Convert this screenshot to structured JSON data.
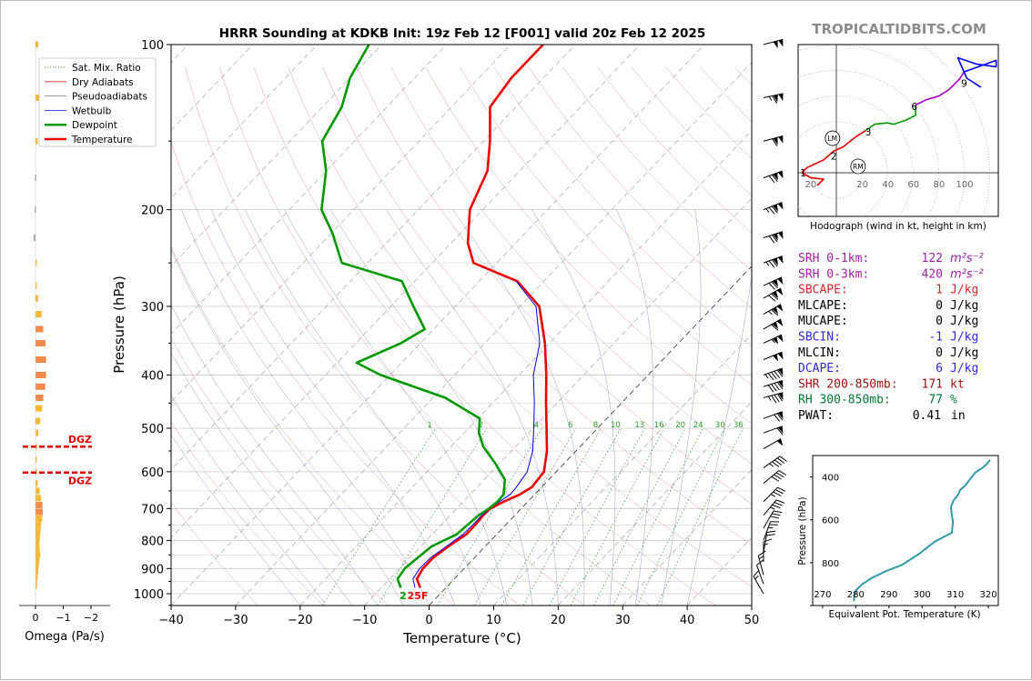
{
  "header": {
    "title": "HRRR Sounding at KDKB Init: 19z Feb 12 [F001] valid 20z Feb 12 2025",
    "brand": "TROPICALTIDBITS.COM"
  },
  "legend": {
    "items": [
      {
        "label": "Sat. Mix. Ratio",
        "color": "#2ca02c",
        "style": "dotted"
      },
      {
        "label": "Dry Adiabats",
        "color": "#d62728",
        "style": "solid-thin"
      },
      {
        "label": "Pseudoadiabats",
        "color": "#7f7f7f",
        "style": "solid-thin"
      },
      {
        "label": "Wetbulb",
        "color": "#0000ee",
        "style": "solid-thin"
      },
      {
        "label": "Dewpoint",
        "color": "#009900",
        "style": "solid-thick"
      },
      {
        "label": "Temperature",
        "color": "#ee0000",
        "style": "solid-thick"
      }
    ]
  },
  "skewt": {
    "xlabel": "Temperature (°C)",
    "ylabel": "Pressure (hPa)",
    "surface_temp_label": "25F",
    "surface_dew_label": "2",
    "chart_data": {
      "type": "line",
      "title": "HRRR Sounding at KDKB Init: 19z Feb 12 [F001] valid 20z Feb 12 2025",
      "xlabel": "Temperature (°C)",
      "ylabel": "Pressure (hPa)",
      "xlim": [
        -40,
        50
      ],
      "ylim": [
        1050,
        100
      ],
      "yscale": "log",
      "x_ticks": [
        -40,
        -30,
        -20,
        -10,
        0,
        10,
        20,
        30,
        40,
        50
      ],
      "y_ticks": [
        100,
        200,
        300,
        400,
        500,
        600,
        700,
        800,
        900,
        1000
      ],
      "series": [
        {
          "name": "Temperature",
          "color": "#ee0000",
          "points": [
            [
              -4.0,
              975
            ],
            [
              -5.8,
              940
            ],
            [
              -6.4,
              900
            ],
            [
              -6.4,
              860
            ],
            [
              -5.7,
              820
            ],
            [
              -4.7,
              780
            ],
            [
              -4.7,
              750
            ],
            [
              -4.9,
              720
            ],
            [
              -4.8,
              700
            ],
            [
              -3.7,
              680
            ],
            [
              -2.3,
              660
            ],
            [
              -1.5,
              640
            ],
            [
              -1.9,
              600
            ],
            [
              -4.5,
              550
            ],
            [
              -7.9,
              500
            ],
            [
              -11.7,
              450
            ],
            [
              -15.8,
              400
            ],
            [
              -20.7,
              350
            ],
            [
              -27.0,
              300
            ],
            [
              -34.1,
              270
            ],
            [
              -43.6,
              250
            ],
            [
              -47.4,
              230
            ],
            [
              -52.0,
              200
            ],
            [
              -55.0,
              170
            ],
            [
              -59.0,
              150
            ],
            [
              -64.0,
              130
            ],
            [
              -65.0,
              115
            ],
            [
              -65.0,
              100
            ]
          ]
        },
        {
          "name": "Wetbulb",
          "color": "#0000ee",
          "points": [
            [
              -4.8,
              975
            ],
            [
              -6.4,
              940
            ],
            [
              -6.9,
              900
            ],
            [
              -6.8,
              860
            ],
            [
              -6.0,
              820
            ],
            [
              -5.2,
              780
            ],
            [
              -5.1,
              750
            ],
            [
              -5.1,
              720
            ],
            [
              -4.9,
              700
            ],
            [
              -4.4,
              680
            ],
            [
              -3.8,
              660
            ],
            [
              -3.9,
              640
            ],
            [
              -4.5,
              600
            ],
            [
              -6.7,
              550
            ],
            [
              -9.9,
              500
            ],
            [
              -13.5,
              450
            ],
            [
              -17.8,
              400
            ],
            [
              -21.5,
              350
            ],
            [
              -27.5,
              300
            ],
            [
              -34.3,
              270
            ]
          ]
        },
        {
          "name": "Dewpoint",
          "color": "#009900",
          "points": [
            [
              -7.0,
              975
            ],
            [
              -8.8,
              940
            ],
            [
              -9.2,
              900
            ],
            [
              -8.8,
              860
            ],
            [
              -8.3,
              820
            ],
            [
              -6.2,
              780
            ],
            [
              -5.9,
              750
            ],
            [
              -5.6,
              720
            ],
            [
              -5.0,
              700
            ],
            [
              -4.7,
              680
            ],
            [
              -4.8,
              660
            ],
            [
              -6.8,
              620
            ],
            [
              -10.6,
              580
            ],
            [
              -15.0,
              540
            ],
            [
              -17.7,
              510
            ],
            [
              -19.7,
              480
            ],
            [
              -28.1,
              440
            ],
            [
              -41.5,
              400
            ],
            [
              -47.0,
              380
            ],
            [
              -43.0,
              350
            ],
            [
              -41.4,
              330
            ],
            [
              -46.5,
              300
            ],
            [
              -52.0,
              270
            ],
            [
              -64.0,
              250
            ],
            [
              -70.0,
              220
            ],
            [
              -75.0,
              200
            ],
            [
              -80.0,
              170
            ],
            [
              -85.0,
              150
            ],
            [
              -87.0,
              130
            ],
            [
              -90.0,
              115
            ],
            [
              -92.0,
              100
            ]
          ]
        }
      ],
      "mixing_ratio_labels": [
        "1",
        "2",
        "4",
        "6",
        "8",
        "10",
        "13",
        "16",
        "20",
        "24",
        "30",
        "36"
      ],
      "surface": {
        "temperature_f": 25,
        "dewpoint_label": 2
      }
    }
  },
  "omega": {
    "xlabel": "Omega (Pa/s)",
    "x_ticks": [
      "0",
      "−1",
      "−2"
    ],
    "dgz_label": "DGZ",
    "dgz_top_hpa": 540,
    "dgz_bottom_hpa": 602,
    "chart_data": {
      "type": "bar",
      "orientation": "horizontal",
      "xlabel": "Omega (Pa/s)",
      "xlim": [
        0,
        -2
      ],
      "ylim": [
        1050,
        100
      ],
      "levels_hpa": [
        100,
        125,
        150,
        175,
        200,
        225,
        250,
        275,
        290,
        310,
        330,
        350,
        375,
        400,
        420,
        440,
        460,
        485,
        510,
        540,
        570,
        600,
        630,
        650,
        670,
        690,
        710,
        730,
        750,
        770,
        790,
        810,
        830,
        850,
        870,
        890,
        910,
        930,
        950,
        970
      ],
      "values_pa_s": [
        -0.1,
        -0.12,
        -0.08,
        0.02,
        0.03,
        0.06,
        -0.01,
        0.0,
        -0.1,
        -0.22,
        -0.28,
        -0.36,
        -0.38,
        -0.38,
        -0.35,
        -0.28,
        -0.24,
        -0.17,
        -0.1,
        -0.05,
        -0.03,
        -0.05,
        -0.08,
        -0.15,
        -0.2,
        -0.25,
        -0.26,
        -0.24,
        -0.2,
        -0.18,
        -0.16,
        -0.14,
        -0.15,
        -0.17,
        -0.14,
        -0.12,
        -0.1,
        -0.08,
        -0.06,
        -0.03
      ],
      "colors_note": "orange where |omega| >= 0.25, gold otherwise",
      "dgz_range_hpa": [
        540,
        602
      ]
    }
  },
  "hodograph": {
    "caption": "Hodograph (wind in kt, height in km)",
    "ring_labels": [
      "20",
      "40",
      "60",
      "80",
      "100"
    ],
    "neg_label": "20",
    "markers": [
      {
        "label": "LM"
      },
      {
        "label": "RM"
      }
    ],
    "chart_data": {
      "type": "line",
      "xlabel": "u (kt)",
      "ylabel": "v (kt)",
      "xlim": [
        -30,
        125
      ],
      "ylim": [
        -30,
        100
      ],
      "segments": [
        {
          "name": "0-3 km",
          "color": "#ee0000",
          "points": [
            [
              -15,
              -10
            ],
            [
              -10,
              -5
            ],
            [
              -20,
              -4
            ],
            [
              -25,
              -1
            ],
            [
              -27,
              0
            ],
            [
              -23,
              4
            ],
            [
              -10,
              10
            ],
            [
              -2,
              17
            ],
            [
              5,
              20
            ],
            [
              15,
              28
            ],
            [
              23,
              33
            ]
          ]
        },
        {
          "name": "3-6 km",
          "color": "#009900",
          "points": [
            [
              23,
              33
            ],
            [
              30,
              38
            ],
            [
              40,
              39
            ],
            [
              45,
              38
            ],
            [
              54,
              41
            ],
            [
              62,
              45
            ],
            [
              62,
              53
            ]
          ]
        },
        {
          "name": "6-9 km",
          "color": "#aa00cc",
          "points": [
            [
              62,
              53
            ],
            [
              70,
              57
            ],
            [
              80,
              60
            ],
            [
              88,
              65
            ],
            [
              96,
              73
            ],
            [
              100,
              79
            ]
          ]
        },
        {
          "name": "9+ km",
          "color": "#0000ee",
          "points": [
            [
              100,
              79
            ],
            [
              125,
              88
            ],
            [
              125,
              83
            ],
            [
              110,
              85
            ],
            [
              95,
              90
            ],
            [
              102,
              74
            ],
            [
              113,
              67
            ]
          ]
        }
      ],
      "height_labels": [
        {
          "label": "1",
          "u": -26,
          "v": 0
        },
        {
          "label": "2",
          "u": -2,
          "v": 13
        },
        {
          "label": "3",
          "u": 25,
          "v": 32
        },
        {
          "label": "6",
          "u": 61,
          "v": 52
        },
        {
          "label": "9",
          "u": 100,
          "v": 70
        }
      ],
      "storm_motion": {
        "LM": [
          -3,
          27
        ],
        "RM": [
          17,
          5
        ]
      }
    }
  },
  "indices": [
    {
      "label": "SRH 0-1km:",
      "value": "122",
      "unit": "m²s⁻²",
      "color": "#a020a0"
    },
    {
      "label": "SRH 0-3km:",
      "value": "420",
      "unit": "m²s⁻²",
      "color": "#a020a0"
    },
    {
      "label": "SBCAPE:",
      "value": "1",
      "unit": "J/kg",
      "color": "#d62728"
    },
    {
      "label": "MLCAPE:",
      "value": "0",
      "unit": "J/kg",
      "color": "#000000"
    },
    {
      "label": "MUCAPE:",
      "value": "0",
      "unit": "J/kg",
      "color": "#000000"
    },
    {
      "label": "SBCIN:",
      "value": "-1",
      "unit": "J/kg",
      "color": "#2a2ad6"
    },
    {
      "label": "MLCIN:",
      "value": "0",
      "unit": "J/kg",
      "color": "#000000"
    },
    {
      "label": "DCAPE:",
      "value": "6",
      "unit": "J/kg",
      "color": "#2a2ad6"
    },
    {
      "label": "SHR 200-850mb:",
      "value": "171",
      "unit": "kt",
      "color": "#a01010"
    },
    {
      "label": "RH 300-850mb:",
      "value": "77",
      "unit": "%",
      "color": "#007733"
    },
    {
      "label": "PWAT:",
      "value": "0.41",
      "unit": "in",
      "color": "#000000"
    }
  ],
  "theta_e": {
    "xlabel": "Equivalent Pot. Temperature (K)",
    "ylabel": "Pressure (hPa)",
    "x_ticks": [
      "270",
      "280",
      "290",
      "300",
      "310",
      "320"
    ],
    "y_ticks": [
      "400",
      "600",
      "800"
    ],
    "chart_data": {
      "type": "line",
      "xlabel": "Equivalent Pot. Temperature (K)",
      "ylabel": "Pressure (hPa)",
      "xlim": [
        267,
        323
      ],
      "ylim": [
        1000,
        300
      ],
      "color": "#3399aa",
      "points": [
        [
          279.5,
          980
        ],
        [
          279.5,
          960
        ],
        [
          280.0,
          930
        ],
        [
          282.0,
          900
        ],
        [
          285.0,
          870
        ],
        [
          289.0,
          840
        ],
        [
          294.0,
          810
        ],
        [
          299.0,
          760
        ],
        [
          304.0,
          700
        ],
        [
          309.0,
          660
        ],
        [
          309.3,
          610
        ],
        [
          309.0,
          580
        ],
        [
          308.7,
          540
        ],
        [
          309.5,
          510
        ],
        [
          311.0,
          480
        ],
        [
          311.5,
          460
        ],
        [
          313.0,
          440
        ],
        [
          314.0,
          420
        ],
        [
          316.0,
          380
        ],
        [
          318.0,
          360
        ],
        [
          319.5,
          340
        ],
        [
          320.5,
          320
        ]
      ]
    }
  },
  "wind_barbs": {
    "levels_hpa": [
      100,
      125,
      150,
      175,
      200,
      225,
      250,
      275,
      290,
      310,
      330,
      350,
      375,
      400,
      420,
      440,
      480,
      510,
      545,
      590,
      630,
      680,
      720,
      760,
      800,
      840,
      875,
      925,
      960,
      1000
    ],
    "directions_deg": [
      255,
      258,
      255,
      250,
      248,
      252,
      250,
      245,
      240,
      240,
      240,
      245,
      248,
      250,
      252,
      255,
      250,
      250,
      240,
      235,
      230,
      225,
      220,
      210,
      200,
      190,
      180,
      165,
      160,
      150
    ],
    "speeds_kt": [
      100,
      115,
      110,
      120,
      125,
      120,
      125,
      120,
      120,
      115,
      110,
      105,
      100,
      95,
      90,
      85,
      70,
      60,
      50,
      45,
      40,
      35,
      35,
      30,
      25,
      20,
      15,
      15,
      10,
      15
    ]
  }
}
